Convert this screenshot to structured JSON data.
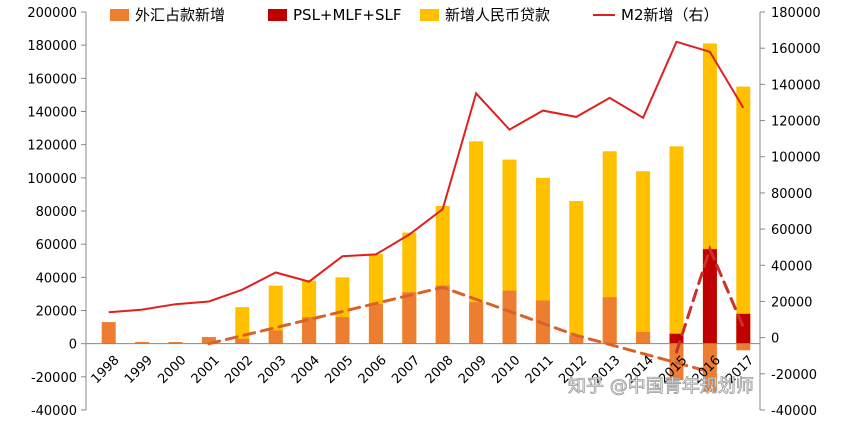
{
  "watermark": "知乎 @中国青年规划师",
  "colors": {
    "fx": "#ED7D31",
    "psl": "#C00000",
    "loans": "#FFC000",
    "m2": "#E0201F",
    "trend_fx": "#D9622B",
    "trend_psl": "#C83228"
  },
  "chart_data": {
    "type": "bar",
    "categories": [
      "1998",
      "1999",
      "2000",
      "2001",
      "2002",
      "2003",
      "2004",
      "2005",
      "2006",
      "2007",
      "2008",
      "2009",
      "2010",
      "2011",
      "2012",
      "2013",
      "2014",
      "2015",
      "2016",
      "2017"
    ],
    "y_left": {
      "min": -40000,
      "max": 200000,
      "step": 20000,
      "ticks": [
        "-40000",
        "-20000",
        "0",
        "20000",
        "40000",
        "60000",
        "80000",
        "100000",
        "120000",
        "140000",
        "160000",
        "180000",
        "200000"
      ]
    },
    "y_right": {
      "min": -40000,
      "max": 180000,
      "step": 20000,
      "ticks": [
        "-40000",
        "-20000",
        "0",
        "20000",
        "40000",
        "60000",
        "80000",
        "100000",
        "120000",
        "140000",
        "160000",
        "180000"
      ]
    },
    "legend": {
      "position": "top",
      "items": [
        "外汇占款新增",
        "PSL+MLF+SLF",
        "新增人民币贷款",
        "M2新增（右）"
      ]
    },
    "series": [
      {
        "name": "外汇占款新增",
        "kind": "bar",
        "axis": "left",
        "values": [
          13000,
          1000,
          1000,
          4000,
          3000,
          8000,
          16000,
          16000,
          24000,
          31000,
          35000,
          25000,
          32000,
          26000,
          5000,
          28000,
          7000,
          -22000,
          -29000,
          -4000
        ]
      },
      {
        "name": "PSL+MLF+SLF",
        "kind": "bar",
        "axis": "left",
        "values": [
          0,
          0,
          0,
          0,
          0,
          0,
          0,
          0,
          0,
          0,
          0,
          0,
          0,
          0,
          0,
          0,
          0,
          6000,
          57000,
          18000
        ]
      },
      {
        "name": "新增人民币贷款",
        "kind": "bar",
        "axis": "left",
        "values": [
          0,
          0,
          0,
          0,
          22000,
          35000,
          38000,
          40000,
          54000,
          67000,
          83000,
          122000,
          111000,
          100000,
          86000,
          116000,
          104000,
          119000,
          181000,
          155000
        ]
      },
      {
        "name": "M2新增（右）",
        "kind": "line",
        "axis": "right",
        "values": [
          14000,
          15500,
          18500,
          20000,
          26500,
          36000,
          31000,
          45000,
          46000,
          57000,
          71000,
          135000,
          115000,
          125500,
          122000,
          132500,
          121500,
          163500,
          158000,
          127000
        ]
      }
    ],
    "trendlines": [
      {
        "follows": "外汇占款新增",
        "style": "dashed",
        "points": [
          [
            "2001",
            0
          ],
          [
            "2008",
            34000
          ],
          [
            "2012",
            5000
          ],
          [
            "2016",
            -17000
          ]
        ]
      },
      {
        "follows": "PSL+MLF+SLF",
        "style": "dashed",
        "points": [
          [
            "2015",
            -5000
          ],
          [
            "2016",
            57000
          ],
          [
            "2017",
            10000
          ]
        ]
      }
    ]
  }
}
